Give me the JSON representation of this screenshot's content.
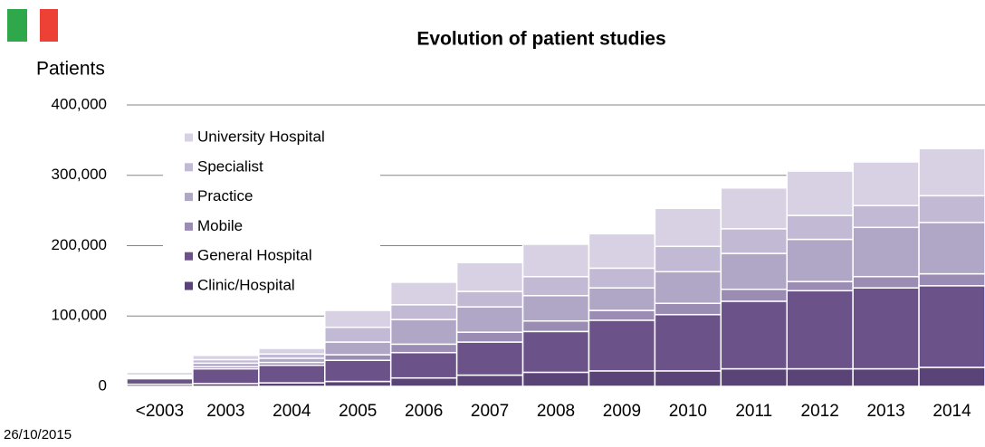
{
  "chart_data": {
    "type": "stacked-bar",
    "title": "Evolution of patient studies",
    "y_label": "Patients",
    "note": "26/10/2015",
    "categories": [
      "<2003",
      "2003",
      "2004",
      "2005",
      "2006",
      "2007",
      "2008",
      "2009",
      "2010",
      "2011",
      "2012",
      "2013",
      "2014"
    ],
    "series": [
      {
        "name": "Clinic/Hospital",
        "color": "#5a4377",
        "values": [
          3000,
          4000,
          5000,
          7000,
          12000,
          16000,
          20000,
          22000,
          22000,
          25000,
          25000,
          25000,
          27000
        ]
      },
      {
        "name": "General Hospital",
        "color": "#6b5289",
        "values": [
          8000,
          21000,
          25000,
          30000,
          36000,
          47000,
          58000,
          72000,
          80000,
          96000,
          111000,
          115000,
          116000
        ]
      },
      {
        "name": "Mobile",
        "color": "#9b8cb4",
        "values": [
          1000,
          3000,
          4000,
          8000,
          12000,
          14000,
          15000,
          14000,
          16000,
          17000,
          13000,
          16000,
          17000
        ]
      },
      {
        "name": "Practice",
        "color": "#b0a6c6",
        "values": [
          2000,
          5000,
          6000,
          18000,
          35000,
          36000,
          36000,
          32000,
          45000,
          51000,
          60000,
          70000,
          73000
        ]
      },
      {
        "name": "Specialist",
        "color": "#c2b9d4",
        "values": [
          2000,
          5000,
          6000,
          21000,
          21000,
          22000,
          27000,
          28000,
          36000,
          35000,
          34000,
          31000,
          38000
        ]
      },
      {
        "name": "University Hospital",
        "color": "#d7d1e3",
        "values": [
          4000,
          6000,
          8000,
          24000,
          32000,
          41000,
          46000,
          49000,
          54000,
          58000,
          63000,
          62000,
          67000
        ]
      }
    ],
    "ylim": [
      0,
      400000
    ],
    "yticks": [
      0,
      {
        "value": 100000,
        "label": "100,000"
      },
      {
        "value": 200000,
        "label": "200,000"
      },
      {
        "value": 300000,
        "label": "300,000"
      },
      {
        "value": 400000,
        "label": "400,000"
      }
    ],
    "grid": true,
    "legend": "upper left"
  }
}
